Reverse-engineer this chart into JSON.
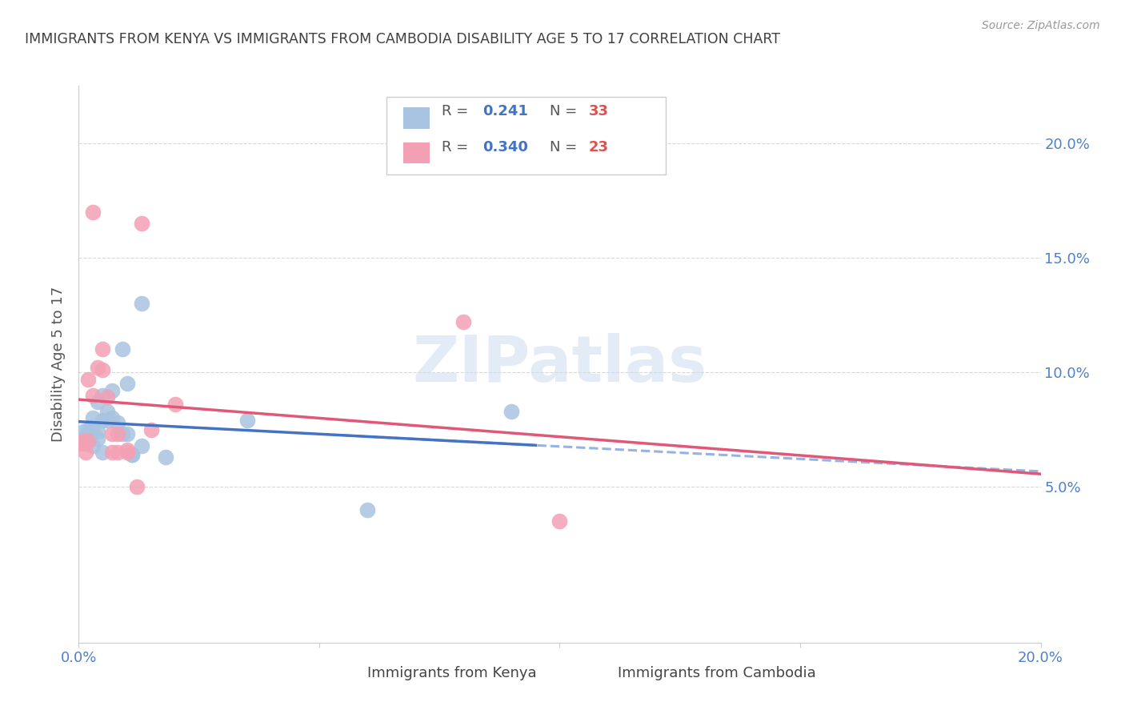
{
  "title": "IMMIGRANTS FROM KENYA VS IMMIGRANTS FROM CAMBODIA DISABILITY AGE 5 TO 17 CORRELATION CHART",
  "source": "Source: ZipAtlas.com",
  "ylabel": "Disability Age 5 to 17",
  "xlim": [
    0.0,
    0.2
  ],
  "ylim": [
    -0.018,
    0.225
  ],
  "yticks": [
    0.0,
    0.05,
    0.1,
    0.15,
    0.2
  ],
  "ytick_labels_right": [
    "",
    "5.0%",
    "10.0%",
    "15.0%",
    "20.0%"
  ],
  "xticks": [
    0.0,
    0.05,
    0.1,
    0.15,
    0.2
  ],
  "xtick_labels": [
    "0.0%",
    "",
    "",
    "",
    "20.0%"
  ],
  "kenya_R": "0.241",
  "kenya_N": "33",
  "cambodia_R": "0.340",
  "cambodia_N": "23",
  "kenya_color": "#a8c4e0",
  "cambodia_color": "#f4a0b4",
  "kenya_line_color": "#4472c4",
  "cambodia_line_color": "#e05878",
  "dashed_line_color": "#8aabe0",
  "title_color": "#404040",
  "source_color": "#999999",
  "tick_label_color": "#5080c8",
  "grid_color": "#d8d8d8",
  "kenya_points": [
    [
      0.001,
      0.071
    ],
    [
      0.001,
      0.074
    ],
    [
      0.0015,
      0.069
    ],
    [
      0.002,
      0.075
    ],
    [
      0.002,
      0.072
    ],
    [
      0.002,
      0.07
    ],
    [
      0.0025,
      0.073
    ],
    [
      0.003,
      0.068
    ],
    [
      0.003,
      0.08
    ],
    [
      0.003,
      0.076
    ],
    [
      0.004,
      0.074
    ],
    [
      0.004,
      0.087
    ],
    [
      0.004,
      0.071
    ],
    [
      0.005,
      0.065
    ],
    [
      0.005,
      0.09
    ],
    [
      0.005,
      0.079
    ],
    [
      0.006,
      0.079
    ],
    [
      0.006,
      0.083
    ],
    [
      0.007,
      0.08
    ],
    [
      0.007,
      0.092
    ],
    [
      0.008,
      0.078
    ],
    [
      0.009,
      0.073
    ],
    [
      0.009,
      0.11
    ],
    [
      0.01,
      0.095
    ],
    [
      0.01,
      0.073
    ],
    [
      0.011,
      0.064
    ],
    [
      0.011,
      0.064
    ],
    [
      0.013,
      0.068
    ],
    [
      0.013,
      0.13
    ],
    [
      0.018,
      0.063
    ],
    [
      0.035,
      0.079
    ],
    [
      0.06,
      0.04
    ],
    [
      0.09,
      0.083
    ]
  ],
  "cambodia_points": [
    [
      0.0008,
      0.069
    ],
    [
      0.001,
      0.07
    ],
    [
      0.0015,
      0.065
    ],
    [
      0.002,
      0.07
    ],
    [
      0.002,
      0.097
    ],
    [
      0.003,
      0.09
    ],
    [
      0.003,
      0.17
    ],
    [
      0.004,
      0.102
    ],
    [
      0.005,
      0.101
    ],
    [
      0.005,
      0.11
    ],
    [
      0.006,
      0.089
    ],
    [
      0.007,
      0.073
    ],
    [
      0.007,
      0.065
    ],
    [
      0.008,
      0.065
    ],
    [
      0.008,
      0.073
    ],
    [
      0.01,
      0.065
    ],
    [
      0.01,
      0.066
    ],
    [
      0.012,
      0.05
    ],
    [
      0.013,
      0.165
    ],
    [
      0.015,
      0.075
    ],
    [
      0.02,
      0.086
    ],
    [
      0.08,
      0.122
    ],
    [
      0.1,
      0.035
    ]
  ],
  "kenya_line_x": [
    0.0,
    0.095
  ],
  "cambodia_line_x": [
    0.0,
    0.2
  ],
  "dashed_line_x": [
    0.055,
    0.2
  ]
}
